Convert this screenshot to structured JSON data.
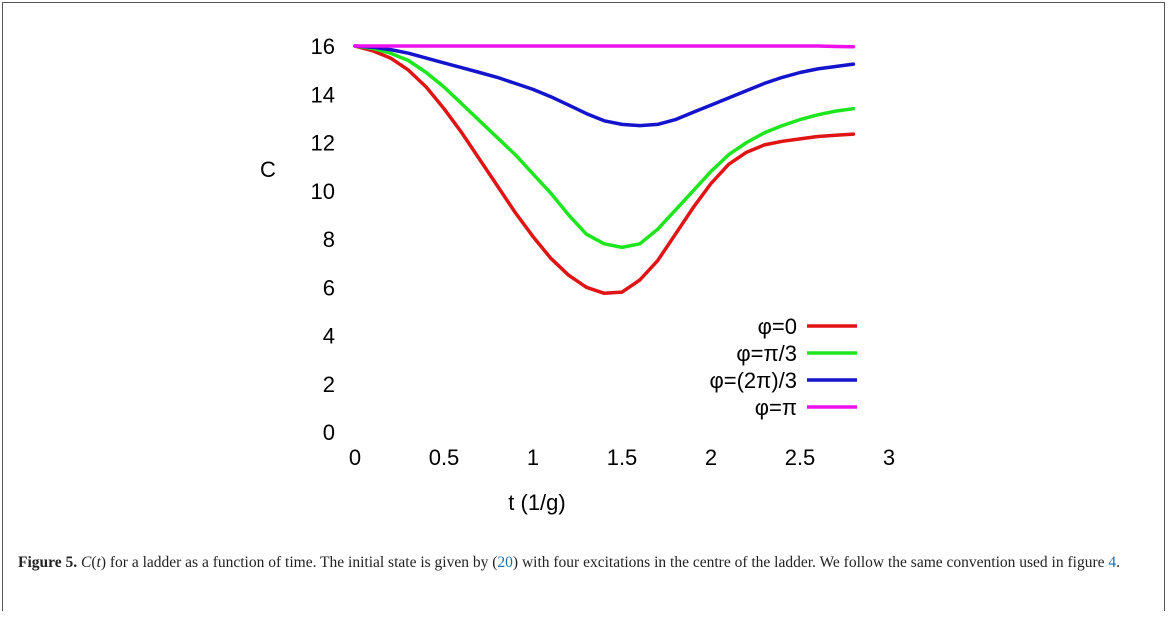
{
  "chart_data": {
    "type": "line",
    "xlabel": "t (1/g)",
    "ylabel": "C",
    "xlim": [
      0,
      3
    ],
    "ylim": [
      0,
      16
    ],
    "xticks": [
      "0",
      "0.5",
      "1",
      "1.5",
      "2",
      "2.5",
      "3"
    ],
    "yticks": [
      "0",
      "2",
      "4",
      "6",
      "8",
      "10",
      "12",
      "14",
      "16"
    ],
    "legend_position": "bottom-right",
    "series": [
      {
        "name": "φ=0",
        "color": "#e01414",
        "x": [
          0,
          0.1,
          0.2,
          0.3,
          0.4,
          0.5,
          0.6,
          0.7,
          0.8,
          0.9,
          1.0,
          1.1,
          1.2,
          1.3,
          1.4,
          1.5,
          1.6,
          1.7,
          1.8,
          1.9,
          2.0,
          2.1,
          2.2,
          2.3,
          2.4,
          2.5,
          2.6,
          2.7,
          2.8
        ],
        "y": [
          16,
          15.8,
          15.5,
          15.0,
          14.3,
          13.4,
          12.4,
          11.3,
          10.2,
          9.1,
          8.1,
          7.2,
          6.5,
          6.0,
          5.75,
          5.8,
          6.3,
          7.1,
          8.2,
          9.3,
          10.3,
          11.1,
          11.6,
          11.9,
          12.05,
          12.15,
          12.25,
          12.3,
          12.35
        ]
      },
      {
        "name": "φ=π/3",
        "color": "#1ee61e",
        "x": [
          0,
          0.1,
          0.2,
          0.3,
          0.4,
          0.5,
          0.6,
          0.7,
          0.8,
          0.9,
          1.0,
          1.1,
          1.2,
          1.3,
          1.4,
          1.5,
          1.6,
          1.7,
          1.8,
          1.9,
          2.0,
          2.1,
          2.2,
          2.3,
          2.4,
          2.5,
          2.6,
          2.7,
          2.8
        ],
        "y": [
          16,
          15.9,
          15.7,
          15.4,
          14.9,
          14.3,
          13.6,
          12.9,
          12.2,
          11.5,
          10.7,
          9.9,
          9.0,
          8.2,
          7.8,
          7.65,
          7.8,
          8.4,
          9.2,
          10.0,
          10.8,
          11.5,
          12.0,
          12.4,
          12.7,
          12.95,
          13.15,
          13.3,
          13.4
        ]
      },
      {
        "name": "φ=(2π)/3",
        "color": "#1414cc",
        "x": [
          0,
          0.1,
          0.2,
          0.3,
          0.4,
          0.5,
          0.6,
          0.7,
          0.8,
          0.9,
          1.0,
          1.1,
          1.2,
          1.3,
          1.4,
          1.5,
          1.6,
          1.7,
          1.8,
          1.9,
          2.0,
          2.1,
          2.2,
          2.3,
          2.4,
          2.5,
          2.6,
          2.7,
          2.8
        ],
        "y": [
          16,
          15.95,
          15.85,
          15.7,
          15.5,
          15.3,
          15.1,
          14.9,
          14.7,
          14.45,
          14.2,
          13.9,
          13.55,
          13.2,
          12.9,
          12.75,
          12.7,
          12.75,
          12.95,
          13.25,
          13.55,
          13.85,
          14.15,
          14.45,
          14.7,
          14.9,
          15.05,
          15.15,
          15.25
        ]
      },
      {
        "name": "φ=π",
        "color": "#ee11ee",
        "x": [
          0,
          0.5,
          1.0,
          1.5,
          2.0,
          2.5,
          2.6,
          2.7,
          2.8
        ],
        "y": [
          16,
          16,
          16,
          16,
          16,
          16,
          16,
          15.98,
          15.97
        ]
      }
    ]
  },
  "caption": {
    "label": "Figure 5.",
    "text_1": " ",
    "italic": "C",
    "text_2": "(",
    "italic_t": "t",
    "text_3": ") for a ladder as a function of time. The initial state is given by (",
    "ref_eq": "20",
    "text_4": ") with four excitations in the centre of the ladder. We follow the same convention used in figure ",
    "ref_fig": "4",
    "text_5": "."
  }
}
